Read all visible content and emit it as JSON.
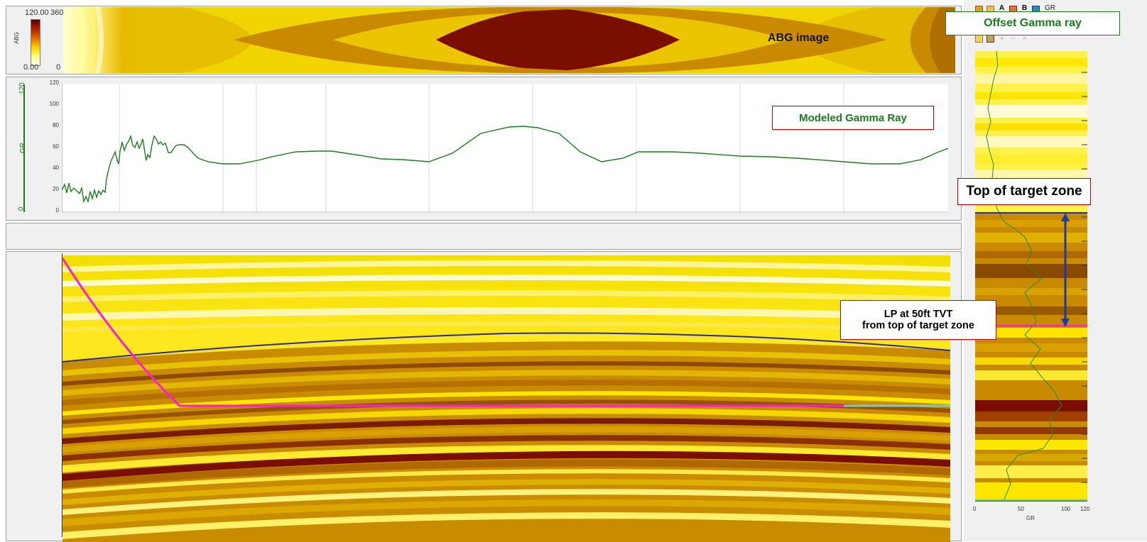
{
  "colors": {
    "panel_bg": "#f0f0f0",
    "gr_curve": "#1e7a1e",
    "well_path": "#ff1ecf",
    "target_top": "#2a2a9a",
    "callout_red": "#c00000",
    "callout_green": "#1e7a1e",
    "arrow_blue": "#1f3a9a"
  },
  "abg_panel": {
    "scale_label": "ABG",
    "scale_max": "120.00",
    "scale_min": "0.00",
    "azimuth_max": "360",
    "azimuth_min": "0",
    "annotation": "ABG image"
  },
  "gr_panel": {
    "axis_label": "GR",
    "axis_max_label": "120",
    "axis_min_label": "0",
    "ticks": [
      "120",
      "100",
      "80",
      "60",
      "40",
      "20",
      "0"
    ],
    "callout": "Modeled Gamma Ray"
  },
  "offset_panel": {
    "title_callout": "Offset Gamma ray",
    "toolbar_label": "GR",
    "x_ticks": [
      "0",
      "50",
      "100",
      "120"
    ],
    "x_label": "GR",
    "top_target_callout": "Top of target zone",
    "lp_callout_line1": "LP at 50ft TVT",
    "lp_callout_line2": "from top of target zone"
  }
}
